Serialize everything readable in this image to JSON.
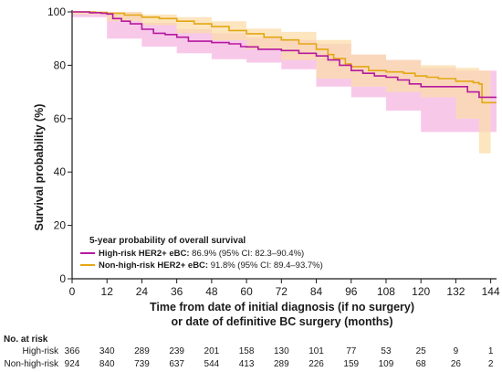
{
  "chart_data": {
    "type": "line",
    "ylabel": "Survival probability (%)",
    "xlabel_line1": "Time from date of initial diagnosis (if no surgery)",
    "xlabel_line2": "or date of definitive BC surgery (months)",
    "xlim": [
      0,
      146
    ],
    "ylim": [
      0,
      100
    ],
    "x_ticks": [
      0,
      12,
      24,
      36,
      48,
      60,
      72,
      84,
      96,
      108,
      120,
      132,
      144
    ],
    "y_ticks": [
      0,
      20,
      40,
      60,
      80,
      100
    ],
    "legend": {
      "title": "5-year probability of overall survival",
      "placement": "lower-left"
    },
    "series": [
      {
        "name": "High-risk HER2+ eBC:",
        "detail": " 86.9% (95% CI: 82.3–90.4%)",
        "color": "#b5199e",
        "band_color": "#f5b5e2",
        "points": [
          [
            0,
            100
          ],
          [
            6,
            99.7
          ],
          [
            10,
            99.5
          ],
          [
            12,
            99.2
          ],
          [
            14,
            97.5
          ],
          [
            17,
            96.5
          ],
          [
            20,
            95.5
          ],
          [
            24,
            93.5
          ],
          [
            28,
            92
          ],
          [
            32,
            91.5
          ],
          [
            36,
            90.5
          ],
          [
            40,
            89
          ],
          [
            44,
            89
          ],
          [
            48,
            88.5
          ],
          [
            54,
            88
          ],
          [
            58,
            87
          ],
          [
            60,
            86.9
          ],
          [
            64,
            86
          ],
          [
            68,
            86
          ],
          [
            72,
            85.5
          ],
          [
            78,
            84.5
          ],
          [
            84,
            83.5
          ],
          [
            88,
            82
          ],
          [
            92,
            80
          ],
          [
            96,
            78
          ],
          [
            100,
            77
          ],
          [
            104,
            76
          ],
          [
            108,
            75.5
          ],
          [
            112,
            74.5
          ],
          [
            116,
            73
          ],
          [
            120,
            72
          ],
          [
            124,
            72
          ],
          [
            132,
            72
          ],
          [
            136,
            70
          ],
          [
            140,
            68
          ],
          [
            146,
            68
          ]
        ],
        "ci_upper": [
          [
            0,
            100
          ],
          [
            12,
            99.8
          ],
          [
            24,
            96
          ],
          [
            36,
            93.5
          ],
          [
            48,
            92
          ],
          [
            60,
            90.4
          ],
          [
            72,
            89.5
          ],
          [
            84,
            88
          ],
          [
            96,
            84
          ],
          [
            108,
            82
          ],
          [
            120,
            79
          ],
          [
            132,
            78
          ],
          [
            144,
            78
          ],
          [
            146,
            78
          ]
        ],
        "ci_lower": [
          [
            0,
            100
          ],
          [
            12,
            98
          ],
          [
            24,
            90
          ],
          [
            36,
            87
          ],
          [
            48,
            84.5
          ],
          [
            60,
            82.3
          ],
          [
            72,
            81
          ],
          [
            84,
            78.5
          ],
          [
            96,
            72
          ],
          [
            108,
            68
          ],
          [
            120,
            63
          ],
          [
            124,
            55
          ],
          [
            144,
            55
          ],
          [
            146,
            55
          ]
        ]
      },
      {
        "name": "Non-high-risk HER2+ eBC:",
        "detail": " 91.8% (95% CI: 89.4–93.7%)",
        "color": "#e3a714",
        "band_color": "#fbdcaa",
        "points": [
          [
            0,
            100
          ],
          [
            8,
            99.8
          ],
          [
            12,
            99.5
          ],
          [
            18,
            98.8
          ],
          [
            24,
            98
          ],
          [
            30,
            97.5
          ],
          [
            36,
            96.5
          ],
          [
            42,
            95.5
          ],
          [
            48,
            94.5
          ],
          [
            54,
            93
          ],
          [
            60,
            91.8
          ],
          [
            66,
            90.5
          ],
          [
            72,
            89.5
          ],
          [
            78,
            88
          ],
          [
            84,
            86
          ],
          [
            88,
            84
          ],
          [
            90,
            82.5
          ],
          [
            94,
            80.5
          ],
          [
            96,
            79.5
          ],
          [
            102,
            78
          ],
          [
            108,
            77.5
          ],
          [
            114,
            77
          ],
          [
            118,
            76
          ],
          [
            122,
            75.5
          ],
          [
            126,
            75
          ],
          [
            132,
            74
          ],
          [
            138,
            73.5
          ],
          [
            140,
            73
          ],
          [
            141,
            66
          ],
          [
            144,
            66
          ],
          [
            146,
            66
          ]
        ],
        "ci_upper": [
          [
            0,
            100
          ],
          [
            12,
            100
          ],
          [
            24,
            99
          ],
          [
            36,
            98
          ],
          [
            48,
            96.5
          ],
          [
            60,
            93.7
          ],
          [
            72,
            92.5
          ],
          [
            84,
            89.5
          ],
          [
            96,
            84
          ],
          [
            108,
            82
          ],
          [
            120,
            80
          ],
          [
            132,
            79
          ],
          [
            140,
            78
          ],
          [
            144,
            78
          ]
        ],
        "ci_lower": [
          [
            0,
            100
          ],
          [
            12,
            99
          ],
          [
            24,
            96.5
          ],
          [
            36,
            95
          ],
          [
            48,
            92
          ],
          [
            60,
            89.4
          ],
          [
            72,
            86
          ],
          [
            84,
            82
          ],
          [
            96,
            75
          ],
          [
            108,
            72
          ],
          [
            120,
            70
          ],
          [
            132,
            68
          ],
          [
            140,
            60
          ],
          [
            141,
            47
          ],
          [
            144,
            47
          ]
        ]
      }
    ],
    "risk_table": {
      "title": "No. at risk",
      "rows": [
        {
          "label": "High-risk",
          "values": [
            "366",
            "340",
            "289",
            "239",
            "201",
            "158",
            "130",
            "101",
            "77",
            "53",
            "25",
            "9",
            "1"
          ]
        },
        {
          "label": "Non-high-risk",
          "values": [
            "924",
            "840",
            "739",
            "637",
            "544",
            "413",
            "289",
            "226",
            "159",
            "109",
            "68",
            "26",
            "2"
          ]
        }
      ]
    }
  }
}
